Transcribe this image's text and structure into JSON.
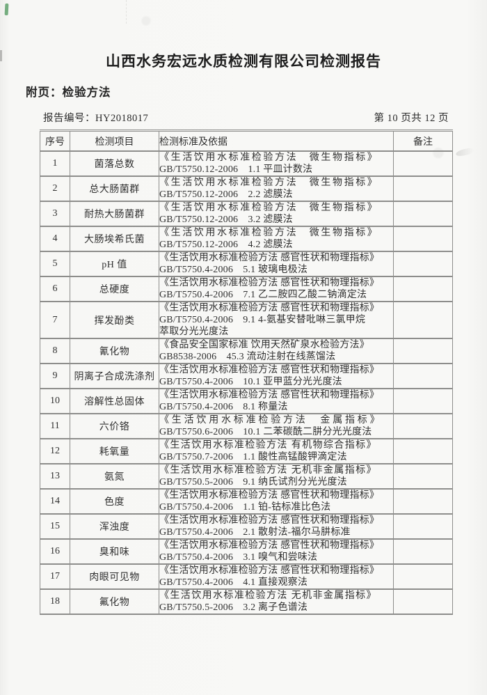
{
  "page": {
    "title": "山西水务宏远水质检测有限公司检测报告",
    "attachment_label": "附页：检验方法",
    "report_no": "报告编号：HY2018017",
    "page_info": "第 10 页共 12 页"
  },
  "table": {
    "headers": [
      "序号",
      "检测项目",
      "检测标准及依据",
      "备注"
    ],
    "rows": [
      {
        "no": "1",
        "item": "菌落总数",
        "standard_lines": [
          {
            "text": "《生活饮用水标准检验方法　微生物指标》",
            "spacing": "wide"
          },
          {
            "text": "GB/T5750.12-2006　1.1 平皿计数法"
          }
        ],
        "remark": ""
      },
      {
        "no": "2",
        "item": "总大肠菌群",
        "standard_lines": [
          {
            "text": "《生活饮用水标准检验方法　微生物指标》",
            "spacing": "wide"
          },
          {
            "text": "GB/T5750.12-2006　2.2 滤膜法"
          }
        ],
        "remark": ""
      },
      {
        "no": "3",
        "item": "耐热大肠菌群",
        "standard_lines": [
          {
            "text": "《生活饮用水标准检验方法　微生物指标》",
            "spacing": "wide"
          },
          {
            "text": "GB/T5750.12-2006　3.2 滤膜法"
          }
        ],
        "remark": ""
      },
      {
        "no": "4",
        "item": "大肠埃希氏菌",
        "standard_lines": [
          {
            "text": "《生活饮用水标准检验方法　微生物指标》",
            "spacing": "wide"
          },
          {
            "text": "GB/T5750.12-2006　4.2 滤膜法"
          }
        ],
        "remark": ""
      },
      {
        "no": "5",
        "item": "pH 值",
        "standard_lines": [
          {
            "text": "《生活饮用水标准检验方法 感官性状和物理指标》"
          },
          {
            "text": "GB/T5750.4-2006　5.1 玻璃电极法"
          }
        ],
        "remark": ""
      },
      {
        "no": "6",
        "item": "总硬度",
        "standard_lines": [
          {
            "text": "《生活饮用水标准检验方法 感官性状和物理指标》"
          },
          {
            "text": "GB/T5750.4-2006　7.1 乙二胺四乙酸二钠滴定法"
          }
        ],
        "remark": ""
      },
      {
        "no": "7",
        "item": "挥发酚类",
        "standard_lines": [
          {
            "text": "《生活饮用水标准检验方法 感官性状和物理指标》"
          },
          {
            "text": "GB/T5750.4-2006　9.1 4-氨基安替吡啉三氯甲烷"
          },
          {
            "text": "萃取分光光度法"
          }
        ],
        "remark": ""
      },
      {
        "no": "8",
        "item": "氰化物",
        "standard_lines": [
          {
            "text": "《食品安全国家标准 饮用天然矿泉水检验方法》"
          },
          {
            "text": "GB8538-2006　45.3 流动注射在线蒸馏法"
          }
        ],
        "remark": ""
      },
      {
        "no": "9",
        "item": "阴离子合成洗涤剂",
        "standard_lines": [
          {
            "text": "《生活饮用水标准检验方法 感官性状和物理指标》"
          },
          {
            "text": "GB/T5750.4-2006　10.1 亚甲蓝分光光度法"
          }
        ],
        "remark": ""
      },
      {
        "no": "10",
        "item": "溶解性总固体",
        "standard_lines": [
          {
            "text": "《生活饮用水标准检验方法 感官性状和物理指标》"
          },
          {
            "text": "GB/T5750.4-2006　8.1 称量法"
          }
        ],
        "remark": ""
      },
      {
        "no": "11",
        "item": "六价铬",
        "standard_lines": [
          {
            "text": "《生活饮用水标准检验方法　金属指标》",
            "spacing": "xwide"
          },
          {
            "text": "GB/T5750.6-2006　10.1 二苯碳酰二肼分光光度法"
          }
        ],
        "remark": ""
      },
      {
        "no": "12",
        "item": "耗氧量",
        "standard_lines": [
          {
            "text": "《生活饮用水标准检验方法 有机物综合指标》",
            "spacing": "med"
          },
          {
            "text": "GB/T5750.7-2006　1.1 酸性高锰酸钾滴定法"
          }
        ],
        "remark": ""
      },
      {
        "no": "13",
        "item": "氨氮",
        "standard_lines": [
          {
            "text": "《生活饮用水标准检验方法 无机非金属指标》",
            "spacing": "med"
          },
          {
            "text": "GB/T5750.5-2006　9.1 纳氏试剂分光光度法"
          }
        ],
        "remark": ""
      },
      {
        "no": "14",
        "item": "色度",
        "standard_lines": [
          {
            "text": "《生活饮用水标准检验方法 感官性状和物理指标》"
          },
          {
            "text": "GB/T5750.4-2006　1.1 铂-钴标准比色法"
          }
        ],
        "remark": ""
      },
      {
        "no": "15",
        "item": "浑浊度",
        "standard_lines": [
          {
            "text": "《生活饮用水标准检验方法 感官性状和物理指标》"
          },
          {
            "text": "GB/T5750.4-2006　2.1 散射法-福尔马肼标准"
          }
        ],
        "remark": ""
      },
      {
        "no": "16",
        "item": "臭和味",
        "standard_lines": [
          {
            "text": "《生活饮用水标准检验方法 感官性状和物理指标》"
          },
          {
            "text": "GB/T5750.4-2006　3.1 嗅气和尝味法"
          }
        ],
        "remark": ""
      },
      {
        "no": "17",
        "item": "肉眼可见物",
        "standard_lines": [
          {
            "text": "《生活饮用水标准检验方法 感官性状和物理指标》"
          },
          {
            "text": "GB/T5750.4-2006　4.1 直接观察法"
          }
        ],
        "remark": ""
      },
      {
        "no": "18",
        "item": "氟化物",
        "standard_lines": [
          {
            "text": "《生活饮用水标准检验方法 无机非金属指标》",
            "spacing": "med"
          },
          {
            "text": "GB/T5750.5-2006　3.2 离子色谱法"
          }
        ],
        "remark": ""
      }
    ]
  },
  "artifact_colors": {
    "green_mark": "#5ea06b",
    "paper": "#f7f7f5",
    "table_border": "#8d8d8b"
  }
}
